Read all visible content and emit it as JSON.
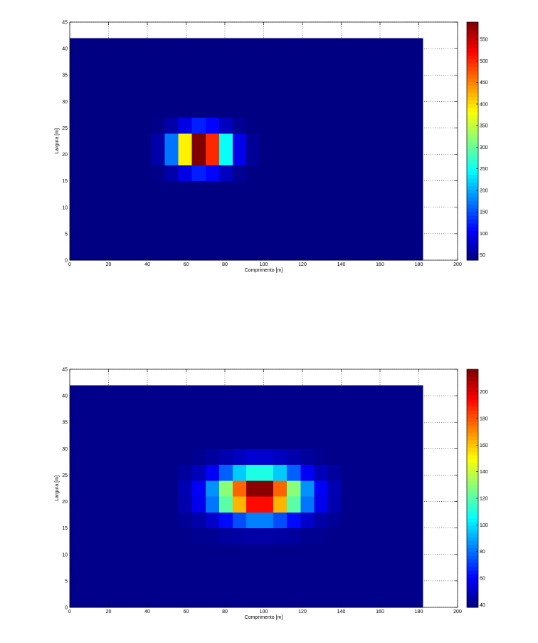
{
  "chart_data": [
    {
      "type": "heatmap",
      "xlabel": "Comprimento [m]",
      "ylabel": "Largura [m]",
      "colormap": "jet",
      "grid": true,
      "xlim": [
        0,
        200
      ],
      "ylim": [
        0,
        45
      ],
      "xticks": [
        0,
        20,
        40,
        60,
        80,
        100,
        120,
        140,
        160,
        180,
        200
      ],
      "yticks": [
        0,
        5,
        10,
        15,
        20,
        25,
        30,
        35,
        40,
        45
      ],
      "clim": [
        38,
        590
      ],
      "cticks": [
        50,
        100,
        150,
        200,
        250,
        300,
        350,
        400,
        450,
        500,
        550
      ],
      "x_edges": [
        0,
        7,
        14,
        21,
        28,
        35,
        42,
        49,
        56,
        63,
        70,
        77,
        84,
        91,
        98,
        105,
        112,
        119,
        126,
        133,
        140,
        147,
        154,
        161,
        168,
        175,
        182
      ],
      "y_edges": [
        0,
        3,
        6,
        9,
        12,
        15,
        18,
        21,
        24,
        27,
        30,
        33,
        36,
        39,
        42
      ],
      "z": [
        [
          40,
          40,
          40,
          40,
          40,
          40,
          40,
          40,
          40,
          40,
          40,
          40,
          40,
          40,
          40,
          40,
          40,
          40,
          40,
          40,
          40,
          40,
          40,
          40,
          40,
          40
        ],
        [
          40,
          40,
          40,
          40,
          40,
          40,
          40,
          40,
          40,
          40,
          40,
          40,
          40,
          40,
          40,
          40,
          40,
          40,
          40,
          40,
          40,
          40,
          40,
          40,
          40,
          40
        ],
        [
          40,
          40,
          40,
          40,
          40,
          40,
          40,
          40,
          40,
          40,
          40,
          40,
          40,
          40,
          40,
          40,
          40,
          40,
          40,
          40,
          40,
          40,
          40,
          40,
          40,
          40
        ],
        [
          40,
          40,
          40,
          40,
          40,
          40,
          40,
          40,
          40,
          40,
          40,
          40,
          40,
          40,
          40,
          40,
          40,
          40,
          40,
          40,
          40,
          40,
          40,
          40,
          40,
          40
        ],
        [
          40,
          40,
          40,
          40,
          40,
          40,
          40,
          40,
          40,
          40,
          40,
          40,
          40,
          40,
          40,
          40,
          40,
          40,
          40,
          40,
          40,
          40,
          40,
          40,
          40,
          40
        ],
        [
          40,
          40,
          40,
          40,
          40,
          40,
          43,
          60,
          93,
          123,
          109,
          72,
          48,
          41,
          40,
          40,
          40,
          40,
          40,
          40,
          40,
          40,
          40,
          40,
          40,
          40
        ],
        [
          40,
          40,
          40,
          40,
          40,
          40,
          60,
          170,
          390,
          590,
          500,
          250,
          95,
          50,
          40,
          40,
          40,
          40,
          40,
          40,
          40,
          40,
          40,
          40,
          40,
          40
        ],
        [
          40,
          40,
          40,
          40,
          40,
          40,
          60,
          170,
          390,
          590,
          500,
          250,
          95,
          50,
          40,
          40,
          40,
          40,
          40,
          40,
          40,
          40,
          40,
          40,
          40,
          40
        ],
        [
          40,
          40,
          40,
          40,
          40,
          40,
          43,
          60,
          93,
          123,
          109,
          72,
          48,
          41,
          40,
          40,
          40,
          40,
          40,
          40,
          40,
          40,
          40,
          40,
          40,
          40
        ],
        [
          40,
          40,
          40,
          40,
          40,
          40,
          40,
          40,
          40,
          40,
          40,
          40,
          40,
          40,
          40,
          40,
          40,
          40,
          40,
          40,
          40,
          40,
          40,
          40,
          40,
          40
        ],
        [
          40,
          40,
          40,
          40,
          40,
          40,
          40,
          40,
          40,
          40,
          40,
          40,
          40,
          40,
          40,
          40,
          40,
          40,
          40,
          40,
          40,
          40,
          40,
          40,
          40,
          40
        ],
        [
          40,
          40,
          40,
          40,
          40,
          40,
          40,
          40,
          40,
          40,
          40,
          40,
          40,
          40,
          40,
          40,
          40,
          40,
          40,
          40,
          40,
          40,
          40,
          40,
          40,
          40
        ],
        [
          40,
          40,
          40,
          40,
          40,
          40,
          40,
          40,
          40,
          40,
          40,
          40,
          40,
          40,
          40,
          40,
          40,
          40,
          40,
          40,
          40,
          40,
          40,
          40,
          40,
          40
        ],
        [
          40,
          40,
          40,
          40,
          40,
          40,
          40,
          40,
          40,
          40,
          40,
          40,
          40,
          40,
          40,
          40,
          40,
          40,
          40,
          40,
          40,
          40,
          40,
          40,
          40,
          40
        ]
      ]
    },
    {
      "type": "heatmap",
      "xlabel": "Comprimento [m]",
      "ylabel": "Largura [m]",
      "colormap": "jet",
      "grid": true,
      "xlim": [
        0,
        200
      ],
      "ylim": [
        0,
        45
      ],
      "xticks": [
        0,
        20,
        40,
        60,
        80,
        100,
        120,
        140,
        160,
        180,
        200
      ],
      "yticks": [
        0,
        5,
        10,
        15,
        20,
        25,
        30,
        35,
        40,
        45
      ],
      "clim": [
        38,
        217
      ],
      "cticks": [
        40,
        60,
        80,
        100,
        120,
        140,
        160,
        180,
        200
      ],
      "x_edges": [
        0,
        7,
        14,
        21,
        28,
        35,
        42,
        49,
        56,
        63,
        70,
        77,
        84,
        91,
        98,
        105,
        112,
        119,
        126,
        133,
        140,
        147,
        154,
        161,
        168,
        175,
        182
      ],
      "y_edges": [
        0,
        3,
        6,
        9,
        12,
        15,
        18,
        21,
        24,
        27,
        30,
        33,
        36,
        39,
        42
      ],
      "z": [
        [
          40,
          40,
          40,
          40,
          40,
          40,
          40,
          40,
          40,
          40,
          40,
          40,
          40,
          40,
          40,
          40,
          40,
          40,
          40,
          40,
          40,
          40,
          40,
          40,
          40,
          40
        ],
        [
          40,
          40,
          40,
          40,
          40,
          40,
          40,
          40,
          40,
          40,
          40,
          40,
          40,
          40,
          40,
          40,
          40,
          40,
          40,
          40,
          40,
          40,
          40,
          40,
          40,
          40
        ],
        [
          40,
          40,
          40,
          40,
          40,
          40,
          40,
          40,
          40,
          40,
          40,
          40,
          40,
          40,
          40,
          40,
          40,
          40,
          40,
          40,
          40,
          40,
          40,
          40,
          40,
          40
        ],
        [
          40,
          40,
          40,
          40,
          40,
          40,
          40,
          40,
          40,
          40,
          40,
          40,
          40,
          40,
          40,
          40,
          40,
          40,
          40,
          40,
          40,
          40,
          40,
          40,
          40,
          40
        ],
        [
          40,
          40,
          40,
          40,
          40,
          40,
          40,
          40,
          40,
          41,
          41,
          43,
          44,
          45,
          45,
          44,
          43,
          41,
          41,
          40,
          40,
          40,
          40,
          40,
          40,
          40
        ],
        [
          40,
          40,
          40,
          40,
          40,
          40,
          40,
          40,
          42,
          45,
          51,
          62,
          74,
          83,
          83,
          74,
          62,
          51,
          45,
          42,
          40,
          40,
          40,
          40,
          40,
          40
        ],
        [
          40,
          40,
          40,
          40,
          40,
          40,
          40,
          40,
          46,
          57,
          81,
          121,
          163,
          193,
          193,
          163,
          121,
          81,
          57,
          46,
          40,
          40,
          40,
          40,
          40,
          40
        ],
        [
          40,
          40,
          40,
          40,
          40,
          40,
          40,
          40,
          47,
          59,
          86,
          129,
          177,
          215,
          215,
          177,
          129,
          86,
          59,
          47,
          40,
          40,
          40,
          40,
          40,
          40
        ],
        [
          40,
          40,
          40,
          40,
          40,
          40,
          40,
          40,
          43,
          48,
          59,
          77,
          96,
          110,
          110,
          96,
          77,
          59,
          48,
          43,
          40,
          40,
          40,
          40,
          40,
          40
        ],
        [
          40,
          40,
          40,
          40,
          40,
          40,
          40,
          40,
          40,
          41,
          43,
          46,
          49,
          52,
          52,
          49,
          46,
          43,
          41,
          40,
          40,
          40,
          40,
          40,
          40,
          40
        ],
        [
          40,
          40,
          40,
          40,
          40,
          40,
          40,
          40,
          40,
          40,
          40,
          40,
          40,
          40,
          40,
          40,
          40,
          40,
          40,
          40,
          40,
          40,
          40,
          40,
          40,
          40
        ],
        [
          40,
          40,
          40,
          40,
          40,
          40,
          40,
          40,
          40,
          40,
          40,
          40,
          40,
          40,
          40,
          40,
          40,
          40,
          40,
          40,
          40,
          40,
          40,
          40,
          40,
          40
        ],
        [
          40,
          40,
          40,
          40,
          40,
          40,
          40,
          40,
          40,
          40,
          40,
          40,
          40,
          40,
          40,
          40,
          40,
          40,
          40,
          40,
          40,
          40,
          40,
          40,
          40,
          40
        ],
        [
          40,
          40,
          40,
          40,
          40,
          40,
          40,
          40,
          40,
          40,
          40,
          40,
          40,
          40,
          40,
          40,
          40,
          40,
          40,
          40,
          40,
          40,
          40,
          40,
          40,
          40
        ]
      ]
    }
  ]
}
